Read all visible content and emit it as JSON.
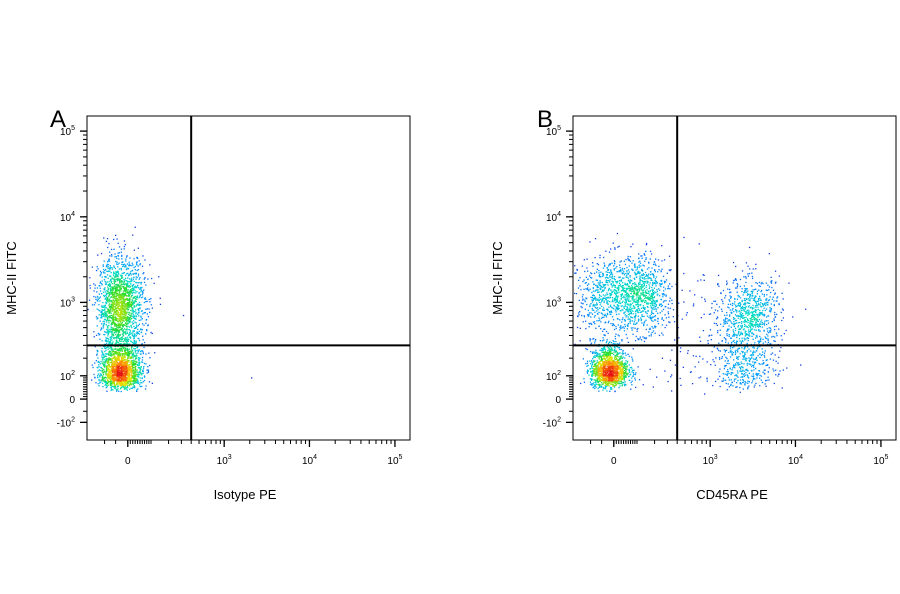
{
  "chart_data": [
    {
      "type": "scatter",
      "panel_label": "A",
      "xlabel": "Isotype PE",
      "ylabel": "MHC-II FITC",
      "x_scale": "biexponential",
      "y_scale": "biexponential",
      "xlim": [
        -200,
        150000
      ],
      "ylim": [
        -200,
        150000
      ],
      "x_ticks": [
        {
          "value": 0,
          "base": "0",
          "exp": ""
        },
        {
          "value": 1000,
          "base": "10",
          "exp": "3"
        },
        {
          "value": 10000,
          "base": "10",
          "exp": "4"
        },
        {
          "value": 100000,
          "base": "10",
          "exp": "5"
        }
      ],
      "y_ticks": [
        {
          "value": -100,
          "base": "-10",
          "exp": "2"
        },
        {
          "value": 0,
          "base": "0",
          "exp": ""
        },
        {
          "value": 100,
          "base": "10",
          "exp": "2"
        },
        {
          "value": 1000,
          "base": "10",
          "exp": "3"
        },
        {
          "value": 10000,
          "base": "10",
          "exp": "4"
        },
        {
          "value": 100000,
          "base": "10",
          "exp": "5"
        }
      ],
      "gate": {
        "x": 400,
        "y": 300
      },
      "series": [
        {
          "x_center": -30,
          "x_spread": 50,
          "y_center": 900,
          "y_spread": 0.28,
          "count": 1700
        },
        {
          "x_center": -30,
          "x_spread": 45,
          "y_center": 130,
          "y_spread": 0.22,
          "count": 1500
        }
      ],
      "points": [
        {
          "x": 2100,
          "y": 90
        },
        {
          "x": 140,
          "y": 2000
        },
        {
          "x": 320,
          "y": 700
        }
      ]
    },
    {
      "type": "scatter",
      "panel_label": "B",
      "xlabel": "CD45RA PE",
      "ylabel": "MHC-II FITC",
      "x_scale": "biexponential",
      "y_scale": "biexponential",
      "xlim": [
        -200,
        150000
      ],
      "ylim": [
        -200,
        150000
      ],
      "x_ticks": [
        {
          "value": 0,
          "base": "0",
          "exp": ""
        },
        {
          "value": 1000,
          "base": "10",
          "exp": "3"
        },
        {
          "value": 10000,
          "base": "10",
          "exp": "4"
        },
        {
          "value": 100000,
          "base": "10",
          "exp": "5"
        }
      ],
      "y_ticks": [
        {
          "value": -100,
          "base": "-10",
          "exp": "2"
        },
        {
          "value": 0,
          "base": "0",
          "exp": ""
        },
        {
          "value": 100,
          "base": "10",
          "exp": "2"
        },
        {
          "value": 1000,
          "base": "10",
          "exp": "3"
        },
        {
          "value": 10000,
          "base": "10",
          "exp": "4"
        },
        {
          "value": 100000,
          "base": "10",
          "exp": "5"
        }
      ],
      "gate": {
        "x": 400,
        "y": 300
      },
      "series": [
        {
          "x_center": -20,
          "x_spread": 40,
          "y_center": 130,
          "y_spread": 0.2,
          "count": 1300
        },
        {
          "x_center": 60,
          "x_spread": 110,
          "y_center": 1200,
          "y_spread": 0.22,
          "count": 1400
        },
        {
          "x_center": 3000,
          "x_spread": 0.18,
          "y_center": 700,
          "y_spread": 0.22,
          "count": 700
        },
        {
          "x_center": 2600,
          "x_spread": 0.18,
          "y_center": 150,
          "y_spread": 0.25,
          "count": 350
        },
        {
          "x_center": 800,
          "x_spread": 0.45,
          "y_center": 400,
          "y_spread": 0.45,
          "count": 150
        }
      ]
    }
  ]
}
